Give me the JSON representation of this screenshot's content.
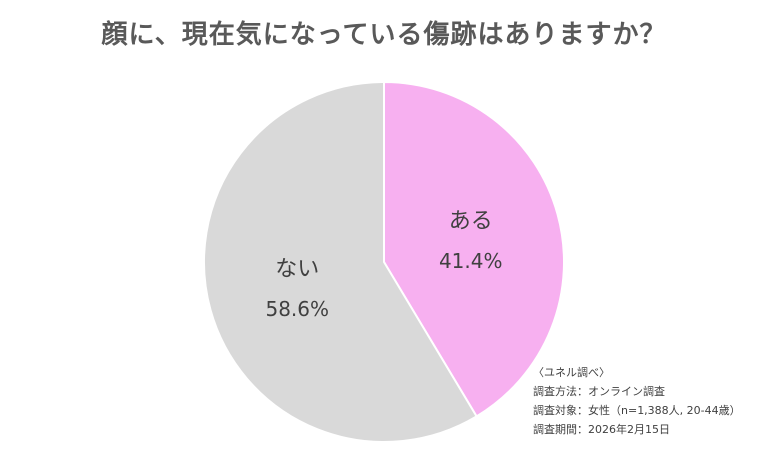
{
  "title": "顔に、現在気になっている傷跡はありますか？",
  "chart_data": {
    "type": "pie",
    "title": "顔に、現在気になっている傷跡はありますか？",
    "slices": [
      {
        "label": "ある",
        "value": 41.4,
        "display": "41.4%",
        "color": "#f7b0f0"
      },
      {
        "label": "ない",
        "value": 58.6,
        "display": "58.6%",
        "color": "#d9d9d9"
      }
    ],
    "start": "12 o'clock",
    "direction": "clockwise"
  },
  "notes": {
    "source": "〈ユネル調べ〉",
    "method": "調査方法：オンライン調査",
    "target": "調査対象：女性（n=1,388人, 20-44歳）",
    "period": "調査期間：2026年2月15日"
  }
}
